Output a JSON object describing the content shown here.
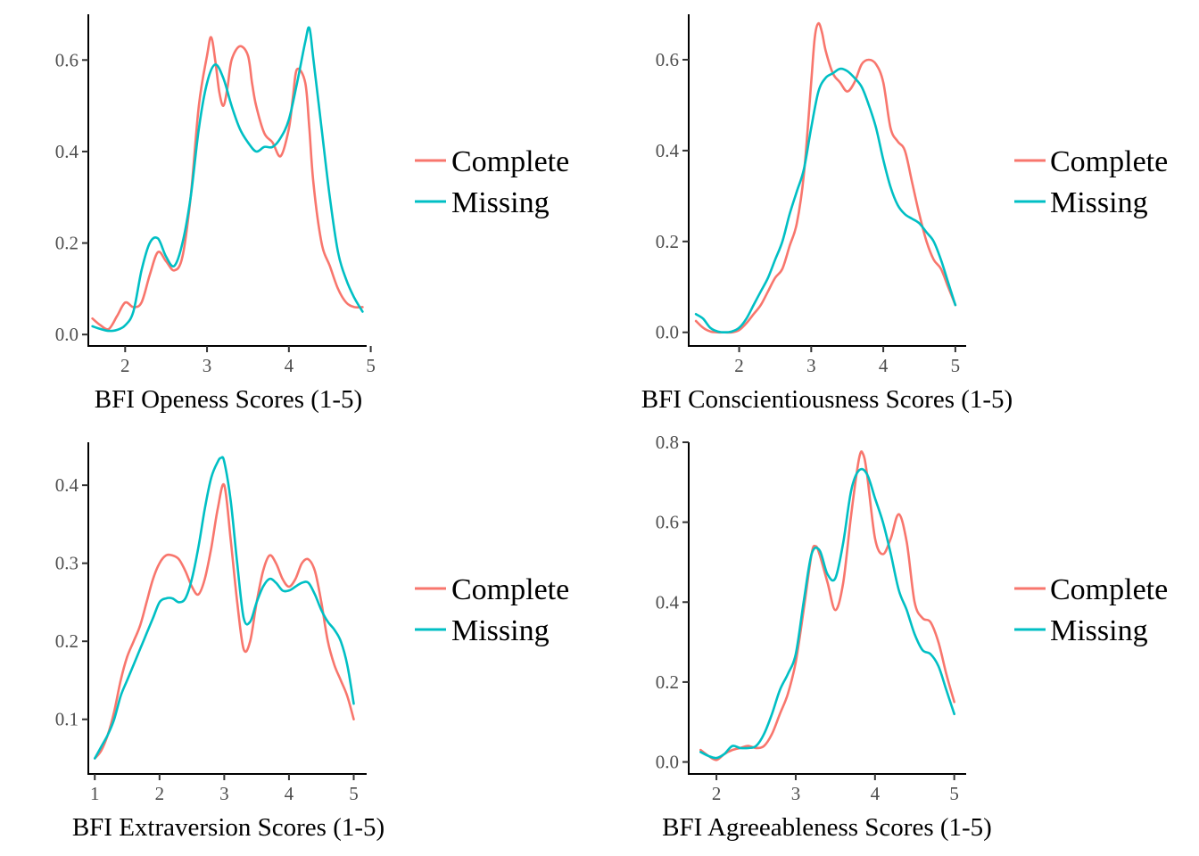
{
  "colors": {
    "Complete": "#F8766D",
    "Missing": "#00BFC4"
  },
  "chart_data": [
    {
      "type": "line",
      "xlabel": "BFI Openess Scores (1-5)",
      "ylabel": "",
      "xlim": [
        1.55,
        4.95
      ],
      "ylim": [
        -0.025,
        0.7
      ],
      "xticks": [
        2,
        3,
        4,
        5
      ],
      "yticks": [
        0.0,
        0.2,
        0.4,
        0.6
      ],
      "grid": false,
      "legend": "right",
      "series": [
        {
          "name": "Complete",
          "color": "#F8766D",
          "x": [
            1.6,
            1.7,
            1.8,
            1.9,
            2.0,
            2.1,
            2.2,
            2.3,
            2.4,
            2.5,
            2.6,
            2.7,
            2.8,
            2.9,
            3.0,
            3.05,
            3.1,
            3.15,
            3.2,
            3.25,
            3.3,
            3.4,
            3.5,
            3.55,
            3.6,
            3.7,
            3.8,
            3.9,
            4.0,
            4.05,
            4.1,
            4.2,
            4.25,
            4.3,
            4.4,
            4.5,
            4.6,
            4.7,
            4.8,
            4.9
          ],
          "y": [
            0.035,
            0.02,
            0.012,
            0.04,
            0.07,
            0.06,
            0.07,
            0.13,
            0.18,
            0.16,
            0.14,
            0.17,
            0.3,
            0.5,
            0.61,
            0.65,
            0.6,
            0.53,
            0.5,
            0.54,
            0.6,
            0.63,
            0.61,
            0.55,
            0.5,
            0.44,
            0.42,
            0.39,
            0.45,
            0.52,
            0.58,
            0.55,
            0.45,
            0.33,
            0.2,
            0.15,
            0.1,
            0.07,
            0.06,
            0.06
          ]
        },
        {
          "name": "Missing",
          "color": "#00BFC4",
          "x": [
            1.6,
            1.7,
            1.8,
            1.9,
            2.0,
            2.1,
            2.2,
            2.3,
            2.4,
            2.5,
            2.6,
            2.7,
            2.8,
            2.9,
            3.0,
            3.1,
            3.2,
            3.3,
            3.4,
            3.5,
            3.6,
            3.7,
            3.8,
            3.9,
            4.0,
            4.1,
            4.2,
            4.25,
            4.3,
            4.4,
            4.5,
            4.6,
            4.7,
            4.8,
            4.9
          ],
          "y": [
            0.018,
            0.012,
            0.008,
            0.01,
            0.02,
            0.05,
            0.14,
            0.2,
            0.21,
            0.17,
            0.15,
            0.2,
            0.3,
            0.45,
            0.55,
            0.59,
            0.56,
            0.5,
            0.45,
            0.42,
            0.4,
            0.41,
            0.41,
            0.43,
            0.47,
            0.55,
            0.64,
            0.67,
            0.6,
            0.45,
            0.3,
            0.18,
            0.12,
            0.08,
            0.05
          ]
        }
      ]
    },
    {
      "type": "line",
      "xlabel": "BFI Conscientiousness Scores (1-5)",
      "ylabel": "",
      "xlim": [
        1.3,
        5.15
      ],
      "ylim": [
        -0.03,
        0.7
      ],
      "xticks": [
        2,
        3,
        4,
        5
      ],
      "yticks": [
        0.0,
        0.2,
        0.4,
        0.6
      ],
      "grid": false,
      "legend": "right",
      "series": [
        {
          "name": "Complete",
          "color": "#F8766D",
          "x": [
            1.4,
            1.5,
            1.6,
            1.7,
            1.8,
            1.9,
            2.0,
            2.1,
            2.2,
            2.3,
            2.4,
            2.5,
            2.6,
            2.7,
            2.8,
            2.9,
            3.0,
            3.05,
            3.1,
            3.15,
            3.2,
            3.3,
            3.4,
            3.5,
            3.6,
            3.7,
            3.8,
            3.9,
            4.0,
            4.1,
            4.2,
            4.3,
            4.4,
            4.5,
            4.6,
            4.7,
            4.8,
            4.9,
            5.0
          ],
          "y": [
            0.025,
            0.01,
            0.002,
            0.0,
            0.0,
            0.0,
            0.005,
            0.02,
            0.04,
            0.06,
            0.09,
            0.12,
            0.14,
            0.19,
            0.24,
            0.35,
            0.55,
            0.65,
            0.68,
            0.66,
            0.62,
            0.57,
            0.55,
            0.53,
            0.55,
            0.59,
            0.6,
            0.59,
            0.55,
            0.45,
            0.42,
            0.4,
            0.33,
            0.26,
            0.2,
            0.16,
            0.14,
            0.1,
            0.06
          ]
        },
        {
          "name": "Missing",
          "color": "#00BFC4",
          "x": [
            1.4,
            1.5,
            1.6,
            1.7,
            1.8,
            1.9,
            2.0,
            2.1,
            2.2,
            2.3,
            2.4,
            2.5,
            2.6,
            2.7,
            2.8,
            2.9,
            3.0,
            3.1,
            3.2,
            3.3,
            3.4,
            3.5,
            3.6,
            3.7,
            3.8,
            3.9,
            4.0,
            4.1,
            4.2,
            4.3,
            4.4,
            4.5,
            4.6,
            4.7,
            4.8,
            4.9,
            5.0
          ],
          "y": [
            0.04,
            0.03,
            0.01,
            0.002,
            0.0,
            0.002,
            0.01,
            0.03,
            0.06,
            0.09,
            0.12,
            0.16,
            0.2,
            0.26,
            0.31,
            0.36,
            0.45,
            0.53,
            0.56,
            0.57,
            0.58,
            0.575,
            0.56,
            0.54,
            0.5,
            0.45,
            0.38,
            0.32,
            0.28,
            0.26,
            0.25,
            0.24,
            0.22,
            0.2,
            0.16,
            0.11,
            0.06
          ]
        }
      ]
    },
    {
      "type": "line",
      "xlabel": "BFI Extraversion Scores (1-5)",
      "ylabel": "",
      "xlim": [
        0.9,
        5.2
      ],
      "ylim": [
        0.03,
        0.455
      ],
      "xticks": [
        1,
        2,
        3,
        4,
        5
      ],
      "yticks": [
        0.1,
        0.2,
        0.3,
        0.4
      ],
      "grid": false,
      "legend": "right",
      "series": [
        {
          "name": "Complete",
          "color": "#F8766D",
          "x": [
            1.0,
            1.1,
            1.2,
            1.3,
            1.4,
            1.5,
            1.6,
            1.7,
            1.8,
            1.9,
            2.0,
            2.1,
            2.2,
            2.3,
            2.4,
            2.5,
            2.6,
            2.7,
            2.8,
            2.9,
            3.0,
            3.1,
            3.2,
            3.3,
            3.4,
            3.5,
            3.6,
            3.7,
            3.8,
            3.9,
            4.0,
            4.1,
            4.2,
            4.3,
            4.4,
            4.5,
            4.6,
            4.7,
            4.8,
            4.9,
            5.0
          ],
          "y": [
            0.05,
            0.06,
            0.08,
            0.11,
            0.15,
            0.18,
            0.2,
            0.22,
            0.25,
            0.28,
            0.3,
            0.31,
            0.31,
            0.305,
            0.29,
            0.27,
            0.26,
            0.28,
            0.32,
            0.37,
            0.4,
            0.33,
            0.25,
            0.19,
            0.2,
            0.25,
            0.29,
            0.31,
            0.3,
            0.28,
            0.27,
            0.28,
            0.3,
            0.305,
            0.29,
            0.25,
            0.2,
            0.17,
            0.15,
            0.13,
            0.1
          ]
        },
        {
          "name": "Missing",
          "color": "#00BFC4",
          "x": [
            1.0,
            1.1,
            1.2,
            1.3,
            1.4,
            1.5,
            1.6,
            1.7,
            1.8,
            1.9,
            2.0,
            2.1,
            2.2,
            2.3,
            2.4,
            2.5,
            2.6,
            2.7,
            2.8,
            2.9,
            2.95,
            3.0,
            3.1,
            3.2,
            3.3,
            3.4,
            3.5,
            3.6,
            3.7,
            3.8,
            3.9,
            4.0,
            4.1,
            4.2,
            4.3,
            4.4,
            4.5,
            4.6,
            4.7,
            4.8,
            4.9,
            5.0
          ],
          "y": [
            0.05,
            0.065,
            0.08,
            0.1,
            0.13,
            0.15,
            0.17,
            0.19,
            0.21,
            0.23,
            0.25,
            0.255,
            0.255,
            0.25,
            0.255,
            0.28,
            0.32,
            0.37,
            0.41,
            0.43,
            0.435,
            0.43,
            0.38,
            0.3,
            0.23,
            0.225,
            0.25,
            0.27,
            0.28,
            0.275,
            0.265,
            0.265,
            0.27,
            0.275,
            0.275,
            0.26,
            0.24,
            0.225,
            0.215,
            0.2,
            0.17,
            0.12
          ]
        }
      ]
    },
    {
      "type": "line",
      "xlabel": "BFI Agreeableness Scores (1-5)",
      "ylabel": "",
      "xlim": [
        1.65,
        5.15
      ],
      "ylim": [
        -0.03,
        0.8
      ],
      "xticks": [
        2,
        3,
        4,
        5
      ],
      "yticks": [
        0.0,
        0.2,
        0.4,
        0.6,
        0.8
      ],
      "grid": false,
      "legend": "right",
      "series": [
        {
          "name": "Complete",
          "color": "#F8766D",
          "x": [
            1.8,
            1.9,
            2.0,
            2.1,
            2.2,
            2.3,
            2.4,
            2.5,
            2.6,
            2.7,
            2.8,
            2.9,
            3.0,
            3.1,
            3.2,
            3.25,
            3.3,
            3.4,
            3.5,
            3.6,
            3.7,
            3.8,
            3.85,
            3.9,
            4.0,
            4.1,
            4.2,
            4.3,
            4.4,
            4.5,
            4.6,
            4.7,
            4.8,
            4.9,
            5.0
          ],
          "y": [
            0.03,
            0.015,
            0.005,
            0.02,
            0.03,
            0.035,
            0.04,
            0.035,
            0.04,
            0.07,
            0.12,
            0.17,
            0.25,
            0.38,
            0.52,
            0.54,
            0.52,
            0.45,
            0.38,
            0.45,
            0.62,
            0.76,
            0.77,
            0.72,
            0.56,
            0.52,
            0.56,
            0.62,
            0.55,
            0.4,
            0.36,
            0.35,
            0.3,
            0.22,
            0.15
          ]
        },
        {
          "name": "Missing",
          "color": "#00BFC4",
          "x": [
            1.8,
            1.9,
            2.0,
            2.1,
            2.2,
            2.3,
            2.4,
            2.5,
            2.6,
            2.7,
            2.8,
            2.9,
            3.0,
            3.1,
            3.2,
            3.3,
            3.4,
            3.5,
            3.6,
            3.7,
            3.8,
            3.9,
            4.0,
            4.1,
            4.2,
            4.3,
            4.4,
            4.5,
            4.6,
            4.7,
            4.8,
            4.9,
            5.0
          ],
          "y": [
            0.025,
            0.015,
            0.01,
            0.02,
            0.04,
            0.035,
            0.035,
            0.04,
            0.07,
            0.12,
            0.18,
            0.22,
            0.27,
            0.4,
            0.52,
            0.53,
            0.47,
            0.46,
            0.55,
            0.68,
            0.73,
            0.72,
            0.66,
            0.6,
            0.52,
            0.43,
            0.38,
            0.32,
            0.28,
            0.27,
            0.24,
            0.18,
            0.12
          ]
        }
      ]
    }
  ]
}
